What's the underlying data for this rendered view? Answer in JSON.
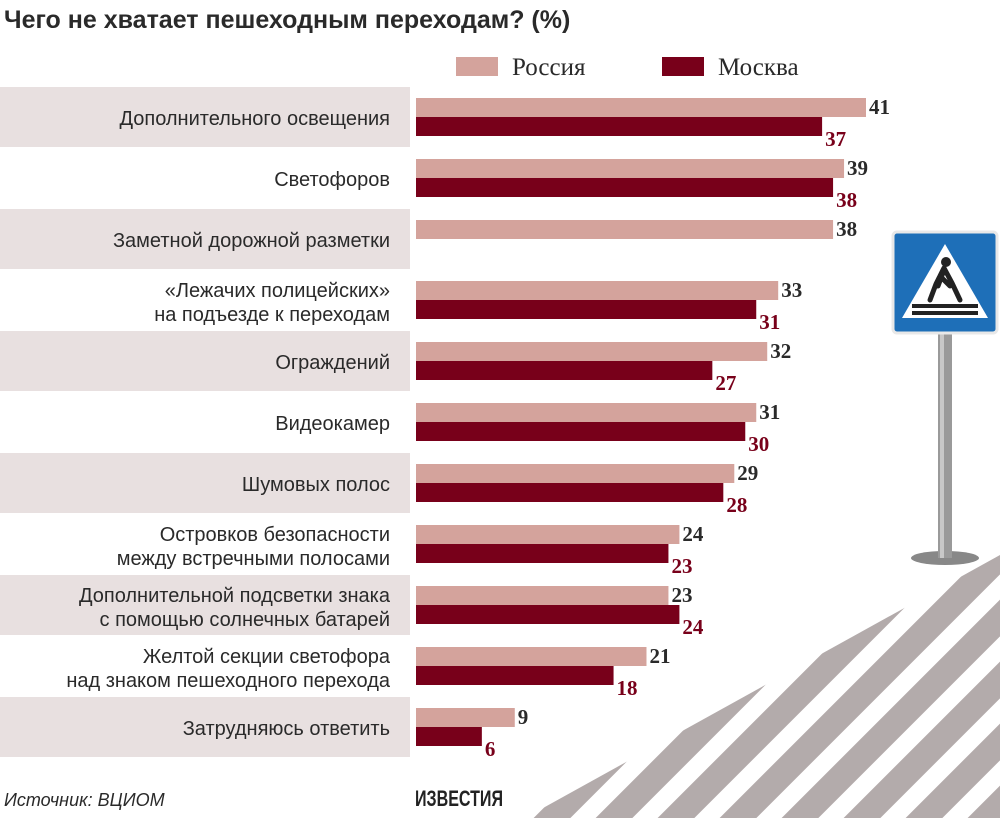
{
  "chart_data": {
    "type": "bar",
    "orientation": "horizontal",
    "title": "Чего не хватает пешеходным переходам? (%)",
    "categories": [
      [
        "Дополнительного освещения"
      ],
      [
        "Светофоров"
      ],
      [
        "Заметной дорожной разметки"
      ],
      [
        "«Лежачих полицейских»",
        "на подъезде к переходам"
      ],
      [
        "Ограждений"
      ],
      [
        "Видеокамер"
      ],
      [
        "Шумовых полос"
      ],
      [
        "Островков безопасности",
        "между встречными полосами"
      ],
      [
        "Дополнительной подсветки знака",
        "с помощью солнечных батарей"
      ],
      [
        "Желтой секции светофора",
        "над знаком пешеходного перехода"
      ],
      [
        "Затрудняюсь ответить"
      ]
    ],
    "series": [
      {
        "name": "Россия",
        "color": "#d4a39c",
        "label_color": "#2a2a2a",
        "values": [
          41,
          39,
          38,
          33,
          32,
          31,
          29,
          24,
          23,
          21,
          9
        ]
      },
      {
        "name": "Москва",
        "color": "#78001a",
        "label_color": "#78001a",
        "values": [
          37,
          38,
          null,
          31,
          27,
          30,
          28,
          23,
          24,
          18,
          6
        ]
      }
    ],
    "legend": "top",
    "grid": false,
    "xlim": [
      0,
      41
    ]
  },
  "source": "Источник: ВЦИОМ",
  "logo": "ИЗВЕСТИЯ",
  "colors": {
    "row_band": "#e8e0e0",
    "sign_blue": "#1e6fb8",
    "stripes": "#b3abab"
  }
}
